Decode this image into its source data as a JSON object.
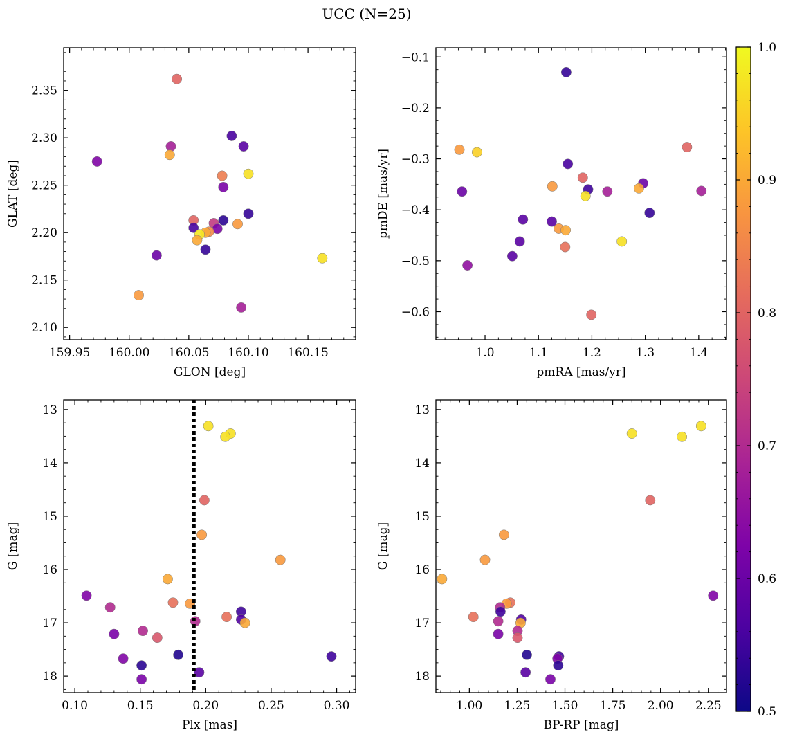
{
  "figure": {
    "title": "UCC (N=25)"
  },
  "colorbar": {
    "min": 0.5,
    "max": 1.0,
    "colormap": "plasma",
    "ticks": [
      "0.5",
      "0.6",
      "0.7",
      "0.8",
      "0.9",
      "1.0"
    ]
  },
  "chart_data": [
    {
      "type": "scatter",
      "xlabel": "GLON [deg]",
      "ylabel": "GLAT [deg]",
      "xlim": [
        159.945,
        160.19
      ],
      "ylim": [
        2.087,
        2.395
      ],
      "y_inverted": false,
      "xticks": [
        "159.95",
        "160.00",
        "160.05",
        "160.10",
        "160.15"
      ],
      "yticks": [
        "2.10",
        "2.15",
        "2.20",
        "2.25",
        "2.30",
        "2.35"
      ],
      "points": [
        {
          "x": 160.04,
          "y": 2.362,
          "c": 0.8
        },
        {
          "x": 159.973,
          "y": 2.275,
          "c": 0.63
        },
        {
          "x": 160.035,
          "y": 2.291,
          "c": 0.68
        },
        {
          "x": 160.034,
          "y": 2.282,
          "c": 0.9
        },
        {
          "x": 160.086,
          "y": 2.302,
          "c": 0.56
        },
        {
          "x": 160.096,
          "y": 2.291,
          "c": 0.58
        },
        {
          "x": 160.078,
          "y": 2.26,
          "c": 0.84
        },
        {
          "x": 160.1,
          "y": 2.262,
          "c": 0.97
        },
        {
          "x": 160.079,
          "y": 2.248,
          "c": 0.62
        },
        {
          "x": 160.1,
          "y": 2.22,
          "c": 0.54
        },
        {
          "x": 160.079,
          "y": 2.213,
          "c": 0.53
        },
        {
          "x": 160.054,
          "y": 2.213,
          "c": 0.8
        },
        {
          "x": 160.071,
          "y": 2.21,
          "c": 0.73
        },
        {
          "x": 160.054,
          "y": 2.205,
          "c": 0.56
        },
        {
          "x": 160.074,
          "y": 2.204,
          "c": 0.62
        },
        {
          "x": 160.091,
          "y": 2.209,
          "c": 0.88
        },
        {
          "x": 160.067,
          "y": 2.201,
          "c": 0.86
        },
        {
          "x": 160.064,
          "y": 2.2,
          "c": 0.9
        },
        {
          "x": 160.059,
          "y": 2.198,
          "c": 0.98
        },
        {
          "x": 160.057,
          "y": 2.192,
          "c": 0.9
        },
        {
          "x": 160.064,
          "y": 2.182,
          "c": 0.54
        },
        {
          "x": 160.023,
          "y": 2.176,
          "c": 0.6
        },
        {
          "x": 160.162,
          "y": 2.173,
          "c": 0.97
        },
        {
          "x": 160.008,
          "y": 2.134,
          "c": 0.88
        },
        {
          "x": 160.094,
          "y": 2.121,
          "c": 0.68
        }
      ]
    },
    {
      "type": "scatter",
      "xlabel": "pmRA [mas/yr]",
      "ylabel": "pmDE [mas/yr]",
      "xlim": [
        0.908,
        1.452
      ],
      "ylim": [
        -0.655,
        -0.082
      ],
      "y_inverted": false,
      "xticks": [
        "1.0",
        "1.1",
        "1.2",
        "1.3",
        "1.4"
      ],
      "yticks": [
        "−0.6",
        "−0.5",
        "−0.4",
        "−0.3",
        "−0.2",
        "−0.1"
      ],
      "points": [
        {
          "x": 1.152,
          "y": -0.13,
          "c": 0.54
        },
        {
          "x": 0.952,
          "y": -0.282,
          "c": 0.88
        },
        {
          "x": 0.985,
          "y": -0.287,
          "c": 0.95
        },
        {
          "x": 1.378,
          "y": -0.277,
          "c": 0.8
        },
        {
          "x": 1.155,
          "y": -0.31,
          "c": 0.56
        },
        {
          "x": 1.183,
          "y": -0.337,
          "c": 0.8
        },
        {
          "x": 1.296,
          "y": -0.348,
          "c": 0.6
        },
        {
          "x": 1.126,
          "y": -0.354,
          "c": 0.88
        },
        {
          "x": 1.288,
          "y": -0.358,
          "c": 0.9
        },
        {
          "x": 1.193,
          "y": -0.36,
          "c": 0.55
        },
        {
          "x": 1.229,
          "y": -0.364,
          "c": 0.68
        },
        {
          "x": 0.957,
          "y": -0.364,
          "c": 0.6
        },
        {
          "x": 1.405,
          "y": -0.363,
          "c": 0.68
        },
        {
          "x": 1.188,
          "y": -0.373,
          "c": 0.97
        },
        {
          "x": 1.308,
          "y": -0.406,
          "c": 0.54
        },
        {
          "x": 1.071,
          "y": -0.419,
          "c": 0.58
        },
        {
          "x": 1.125,
          "y": -0.423,
          "c": 0.58
        },
        {
          "x": 1.138,
          "y": -0.437,
          "c": 0.88
        },
        {
          "x": 1.151,
          "y": -0.44,
          "c": 0.9
        },
        {
          "x": 1.256,
          "y": -0.462,
          "c": 0.97
        },
        {
          "x": 1.065,
          "y": -0.462,
          "c": 0.58
        },
        {
          "x": 1.15,
          "y": -0.473,
          "c": 0.82
        },
        {
          "x": 1.051,
          "y": -0.491,
          "c": 0.58
        },
        {
          "x": 0.967,
          "y": -0.509,
          "c": 0.65
        },
        {
          "x": 1.199,
          "y": -0.606,
          "c": 0.8
        }
      ]
    },
    {
      "type": "scatter",
      "xlabel": "Plx [mas]",
      "ylabel": "G [mag]",
      "xlim": [
        0.0915,
        0.3145
      ],
      "ylim": [
        18.31,
        12.82
      ],
      "y_inverted": true,
      "xticks": [
        "0.10",
        "0.15",
        "0.20",
        "0.25",
        "0.30"
      ],
      "yticks": [
        "13",
        "14",
        "15",
        "16",
        "17",
        "18"
      ],
      "vline": {
        "x": 0.191,
        "style": "dotted",
        "color": "#000000"
      },
      "points": [
        {
          "x": 0.202,
          "y": 13.31,
          "c": 0.97
        },
        {
          "x": 0.219,
          "y": 13.45,
          "c": 0.97
        },
        {
          "x": 0.215,
          "y": 13.51,
          "c": 0.97
        },
        {
          "x": 0.199,
          "y": 14.7,
          "c": 0.8
        },
        {
          "x": 0.197,
          "y": 15.35,
          "c": 0.88
        },
        {
          "x": 0.257,
          "y": 15.82,
          "c": 0.88
        },
        {
          "x": 0.171,
          "y": 16.18,
          "c": 0.9
        },
        {
          "x": 0.109,
          "y": 16.49,
          "c": 0.63
        },
        {
          "x": 0.175,
          "y": 16.62,
          "c": 0.82
        },
        {
          "x": 0.188,
          "y": 16.64,
          "c": 0.88
        },
        {
          "x": 0.127,
          "y": 16.71,
          "c": 0.7
        },
        {
          "x": 0.227,
          "y": 16.79,
          "c": 0.55
        },
        {
          "x": 0.216,
          "y": 16.89,
          "c": 0.82
        },
        {
          "x": 0.227,
          "y": 16.94,
          "c": 0.57
        },
        {
          "x": 0.192,
          "y": 16.97,
          "c": 0.7
        },
        {
          "x": 0.23,
          "y": 17.0,
          "c": 0.9
        },
        {
          "x": 0.152,
          "y": 17.15,
          "c": 0.7
        },
        {
          "x": 0.13,
          "y": 17.21,
          "c": 0.62
        },
        {
          "x": 0.163,
          "y": 17.28,
          "c": 0.78
        },
        {
          "x": 0.179,
          "y": 17.6,
          "c": 0.52
        },
        {
          "x": 0.296,
          "y": 17.63,
          "c": 0.55
        },
        {
          "x": 0.137,
          "y": 17.67,
          "c": 0.63
        },
        {
          "x": 0.151,
          "y": 17.8,
          "c": 0.53
        },
        {
          "x": 0.195,
          "y": 17.93,
          "c": 0.58
        },
        {
          "x": 0.151,
          "y": 18.06,
          "c": 0.62
        }
      ]
    },
    {
      "type": "scatter",
      "xlabel": "BP-RP [mag]",
      "ylabel": "G [mag]",
      "xlim": [
        0.825,
        2.345
      ],
      "ylim": [
        18.31,
        12.82
      ],
      "y_inverted": true,
      "xticks": [
        "1.00",
        "1.25",
        "1.50",
        "1.75",
        "2.00",
        "2.25"
      ],
      "yticks": [
        "13",
        "14",
        "15",
        "16",
        "17",
        "18"
      ],
      "points": [
        {
          "x": 2.212,
          "y": 13.31,
          "c": 0.97
        },
        {
          "x": 1.85,
          "y": 13.45,
          "c": 0.97
        },
        {
          "x": 2.112,
          "y": 13.51,
          "c": 0.97
        },
        {
          "x": 1.946,
          "y": 14.7,
          "c": 0.8
        },
        {
          "x": 1.181,
          "y": 15.35,
          "c": 0.88
        },
        {
          "x": 1.082,
          "y": 15.82,
          "c": 0.88
        },
        {
          "x": 0.857,
          "y": 16.18,
          "c": 0.9
        },
        {
          "x": 2.275,
          "y": 16.49,
          "c": 0.63
        },
        {
          "x": 1.214,
          "y": 16.62,
          "c": 0.82
        },
        {
          "x": 1.195,
          "y": 16.64,
          "c": 0.88
        },
        {
          "x": 1.161,
          "y": 16.71,
          "c": 0.7
        },
        {
          "x": 1.163,
          "y": 16.79,
          "c": 0.55
        },
        {
          "x": 1.021,
          "y": 16.89,
          "c": 0.82
        },
        {
          "x": 1.271,
          "y": 16.94,
          "c": 0.57
        },
        {
          "x": 1.151,
          "y": 16.97,
          "c": 0.7
        },
        {
          "x": 1.268,
          "y": 17.0,
          "c": 0.9
        },
        {
          "x": 1.252,
          "y": 17.15,
          "c": 0.7
        },
        {
          "x": 1.151,
          "y": 17.21,
          "c": 0.62
        },
        {
          "x": 1.252,
          "y": 17.28,
          "c": 0.78
        },
        {
          "x": 1.301,
          "y": 17.6,
          "c": 0.52
        },
        {
          "x": 1.469,
          "y": 17.63,
          "c": 0.55
        },
        {
          "x": 1.461,
          "y": 17.67,
          "c": 0.63
        },
        {
          "x": 1.465,
          "y": 17.8,
          "c": 0.53
        },
        {
          "x": 1.294,
          "y": 17.93,
          "c": 0.58
        },
        {
          "x": 1.424,
          "y": 18.06,
          "c": 0.62
        }
      ]
    }
  ]
}
